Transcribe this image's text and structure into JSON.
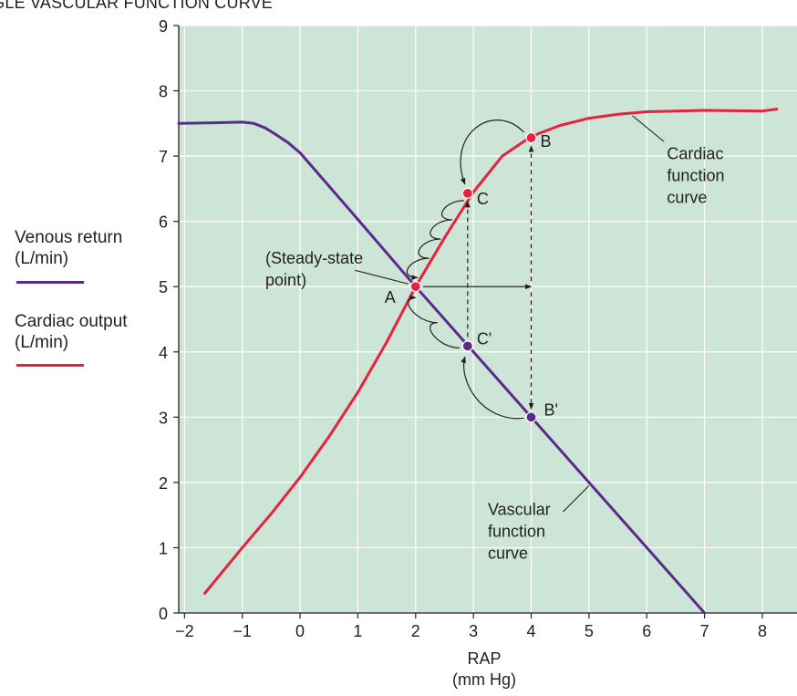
{
  "header": {
    "title": "NGLE VASCULAR FUNCTION CURVE"
  },
  "legend": [
    {
      "label": "Venous return\n(L/min)",
      "color": "#5b2a8c"
    },
    {
      "label": "Cardiac output\n(L/min)",
      "color": "#e8213f"
    }
  ],
  "chart_data": {
    "type": "line",
    "xlabel": "RAP\n(mm Hg)",
    "ylabel": "",
    "xlim": [
      -2.1,
      8.6
    ],
    "ylim": [
      0,
      9
    ],
    "xticks": [
      -2,
      -1,
      0,
      1,
      2,
      3,
      4,
      5,
      6,
      7,
      8
    ],
    "yticks": [
      0,
      1,
      2,
      3,
      4,
      5,
      6,
      7,
      8,
      9
    ],
    "grid": true,
    "background": "#cce5d6",
    "series": [
      {
        "name": "Vascular function curve",
        "color": "#5b2a8c",
        "x": [
          -2.1,
          -1.5,
          -1.0,
          -0.8,
          -0.6,
          -0.4,
          -0.2,
          0,
          1,
          2,
          3,
          4,
          5,
          6,
          7
        ],
        "y": [
          7.5,
          7.51,
          7.52,
          7.5,
          7.43,
          7.32,
          7.2,
          7.05,
          6.03,
          5.0,
          4.0,
          3.0,
          2.0,
          1.0,
          0.0
        ]
      },
      {
        "name": "Cardiac function curve",
        "color": "#e8213f",
        "x": [
          -1.65,
          -1.0,
          -0.5,
          0,
          0.5,
          1,
          1.5,
          2.0,
          2.5,
          3.0,
          3.5,
          4.0,
          4.5,
          5.0,
          5.5,
          6.0,
          7.0,
          8.0,
          8.25
        ],
        "y": [
          0.3,
          1.0,
          1.52,
          2.08,
          2.7,
          3.38,
          4.15,
          5.0,
          5.75,
          6.45,
          7.0,
          7.3,
          7.47,
          7.58,
          7.64,
          7.68,
          7.7,
          7.69,
          7.72
        ]
      }
    ],
    "points": [
      {
        "label": "A",
        "x": 2.0,
        "y": 5.0,
        "color": "#e8213f"
      },
      {
        "label": "B",
        "x": 4.0,
        "y": 7.28,
        "color": "#e8213f"
      },
      {
        "label": "C",
        "x": 2.9,
        "y": 6.43,
        "color": "#e8213f"
      },
      {
        "label": "C'",
        "x": 2.9,
        "y": 4.09,
        "color": "#5b2a8c"
      },
      {
        "label": "B'",
        "x": 4.0,
        "y": 3.0,
        "color": "#5b2a8c"
      }
    ],
    "annotations": [
      {
        "text": "(Steady-state\npoint)",
        "x": -0.6,
        "y": 5.35
      },
      {
        "text": "Cardiac\nfunction\ncurve",
        "x": 6.35,
        "y": 6.95
      },
      {
        "text": "Vascular\nfunction\ncurve",
        "x": 3.25,
        "y": 1.5
      }
    ]
  }
}
